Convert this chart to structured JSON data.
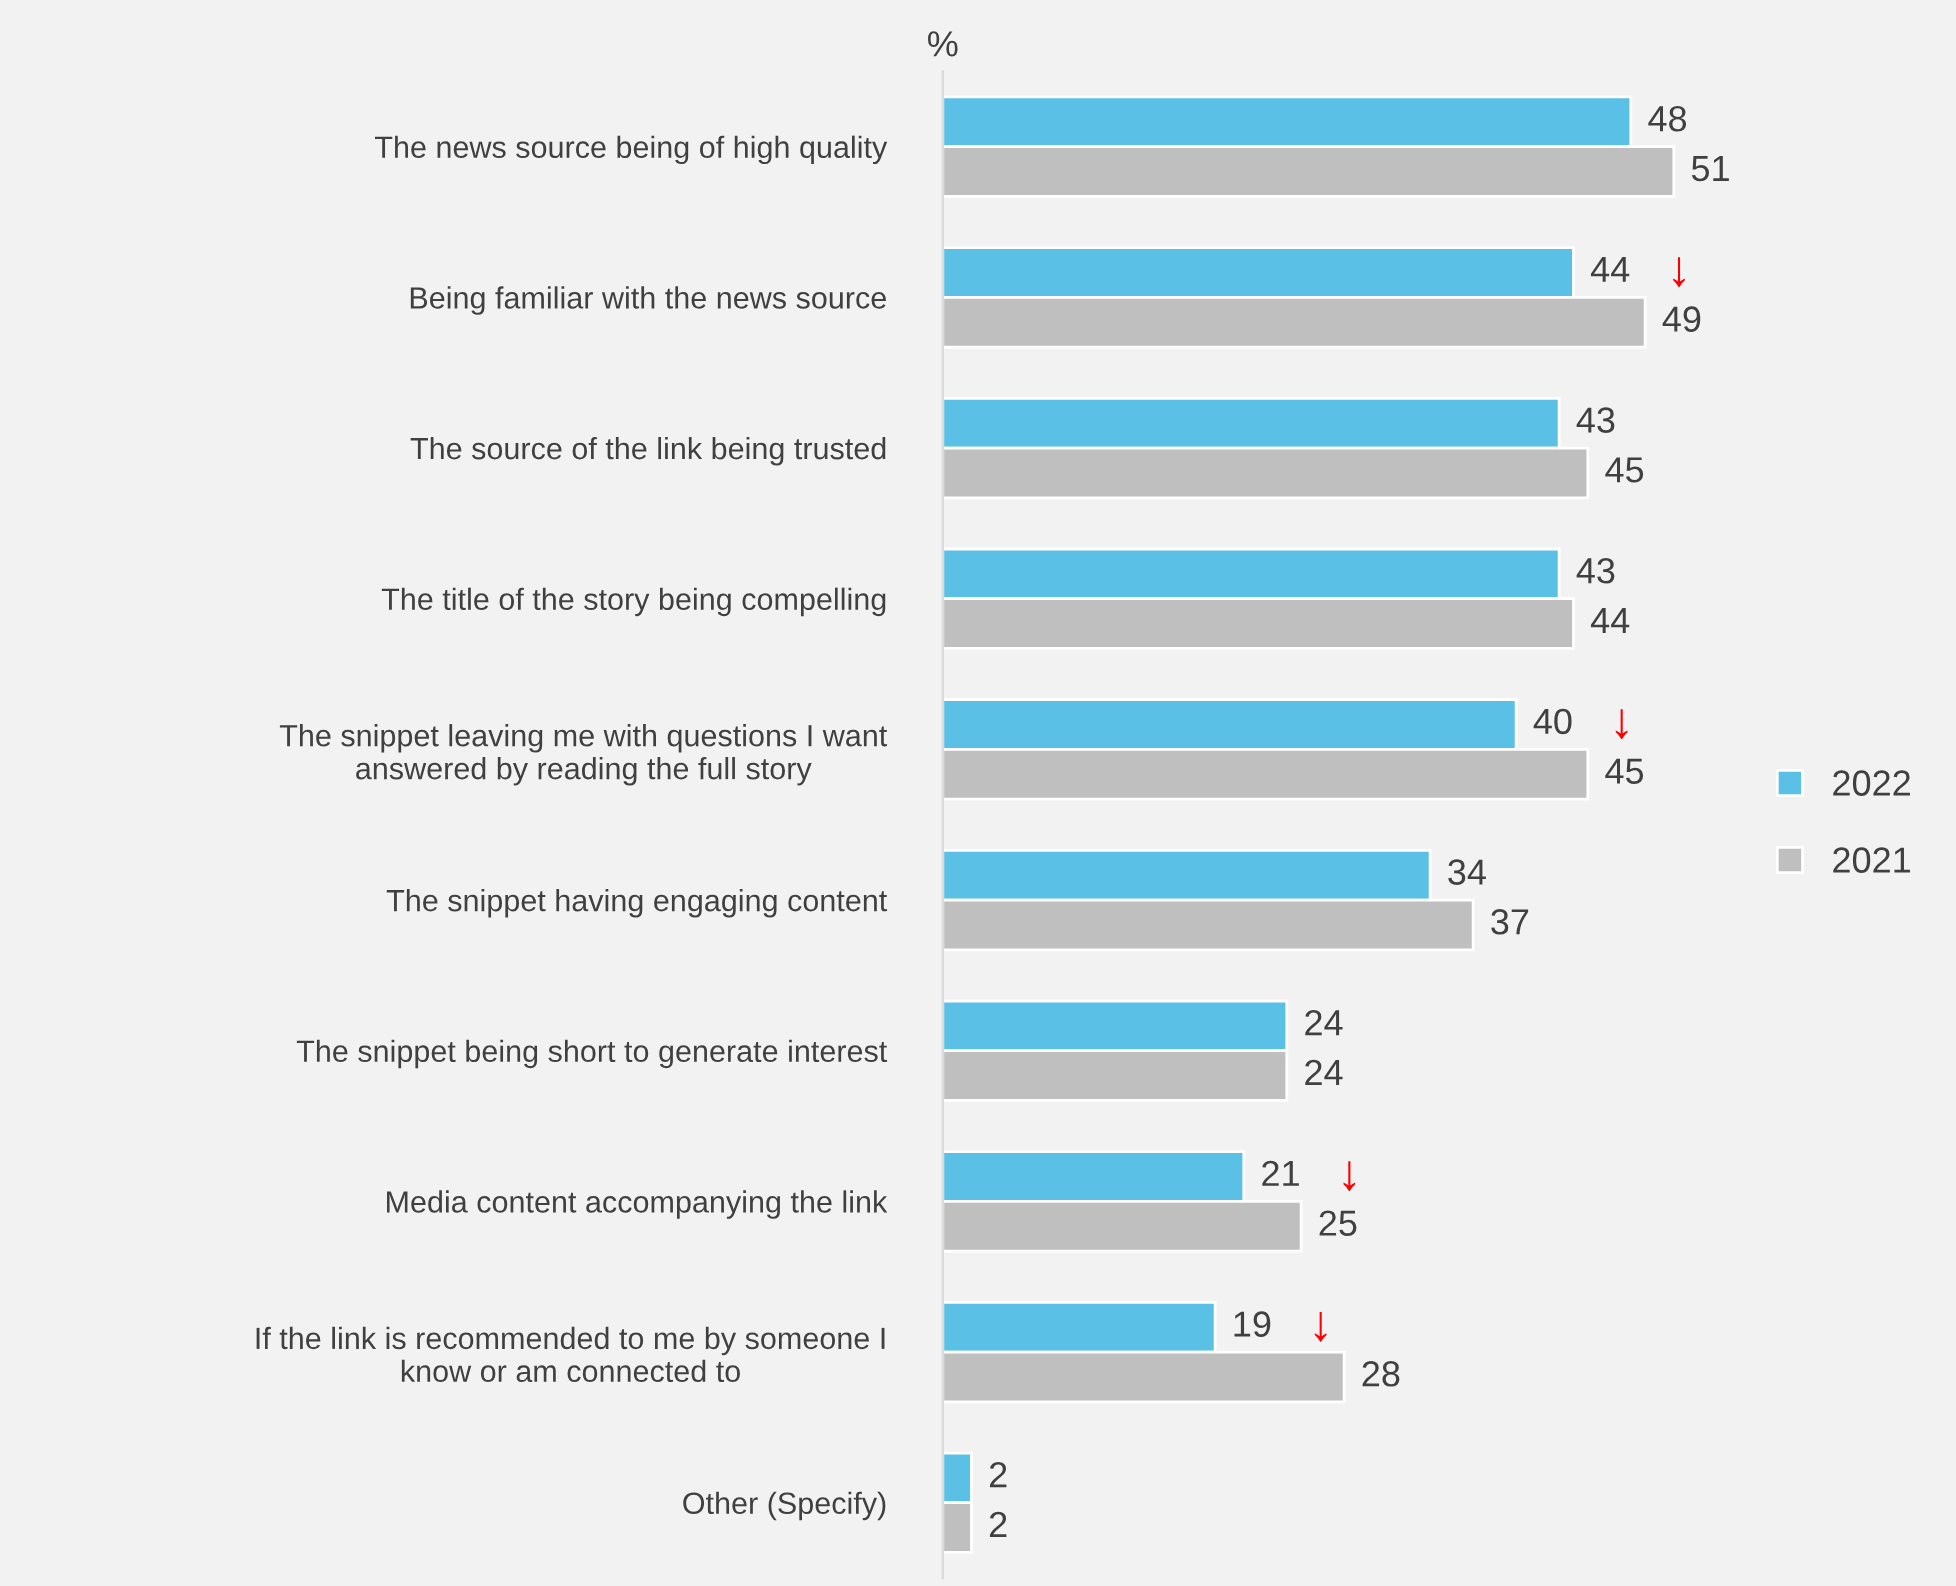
{
  "chart_data": {
    "type": "bar",
    "orientation": "horizontal",
    "categories": [
      "The news source being of high quality",
      "Being familiar with the news source",
      "The source of the link being trusted",
      "The title of the story being compelling",
      "The snippet leaving me with questions I want\nanswered by reading the full story",
      "The snippet having engaging content",
      "The snippet being short to generate interest",
      "Media content accompanying the link",
      "If the link is recommended to me by someone I\nknow or am connected to",
      "Other (Specify)"
    ],
    "series": [
      {
        "name": "2022",
        "color": "#5bc0e6",
        "values": [
          48,
          44,
          43,
          43,
          40,
          34,
          24,
          21,
          19,
          2
        ]
      },
      {
        "name": "2021",
        "color": "#bfbfbf",
        "values": [
          51,
          49,
          45,
          44,
          45,
          37,
          24,
          25,
          28,
          2
        ]
      }
    ],
    "data_labels": true,
    "tick_labels": "y",
    "legend": "right",
    "grid": false,
    "annotations": [
      "%",
      {
        "text": "↓",
        "x": 44,
        "y": "Being familiar with the news source"
      },
      {
        "text": "↓",
        "x": 40,
        "y": "The snippet leaving me with questions I want\nanswered by reading the full story"
      },
      {
        "text": "↓",
        "x": 21,
        "y": "Media content accompanying the link"
      },
      {
        "text": "↓",
        "x": 19,
        "y": "If the link is recommended to me by someone I\nknow or am connected to"
      }
    ]
  }
}
